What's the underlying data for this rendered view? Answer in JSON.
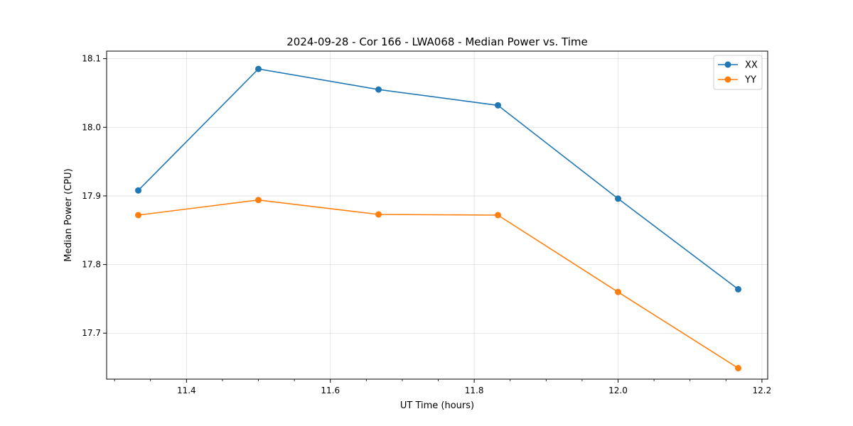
{
  "chart_data": {
    "type": "line",
    "title": "2024-09-28 - Cor 166 - LWA068 - Median Power vs. Time",
    "xlabel": "UT Time (hours)",
    "ylabel": "Median Power (CPU)",
    "xlim": [
      11.289,
      12.208
    ],
    "ylim": [
      17.633,
      18.111
    ],
    "xticks": [
      11.4,
      11.6,
      11.8,
      12.0,
      12.2
    ],
    "xtick_labels": [
      "11.4",
      "11.6",
      "11.8",
      "12.0",
      "12.2"
    ],
    "x_minor_step": 0.05,
    "yticks": [
      17.7,
      17.8,
      17.9,
      18.0,
      18.1
    ],
    "ytick_labels": [
      "17.7",
      "17.8",
      "17.9",
      "18.0",
      "18.1"
    ],
    "grid": true,
    "legend_position": "top-right",
    "x": [
      11.333,
      11.5,
      11.667,
      11.833,
      12.0,
      12.167
    ],
    "series": [
      {
        "name": "XX",
        "color": "#1f77b4",
        "marker": "circle",
        "values": [
          17.908,
          18.085,
          18.055,
          18.032,
          17.896,
          17.764
        ]
      },
      {
        "name": "YY",
        "color": "#ff7f0e",
        "marker": "circle",
        "values": [
          17.872,
          17.894,
          17.873,
          17.872,
          17.76,
          17.649
        ]
      }
    ]
  }
}
